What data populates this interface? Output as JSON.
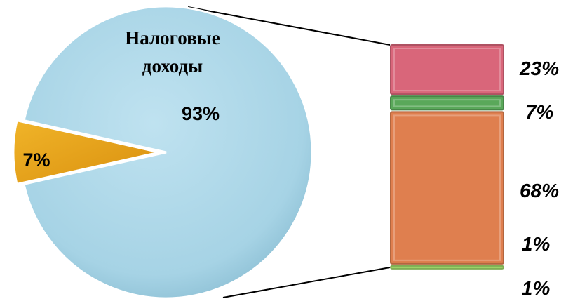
{
  "chart_data": [
    {
      "type": "pie",
      "slices": [
        {
          "label": "Налоговые доходы",
          "label_lines": [
            "Налоговые",
            "доходы"
          ],
          "value": 93,
          "value_label": "93%",
          "color": "#a8d4e6"
        },
        {
          "label": "",
          "value": 7,
          "value_label": "7%",
          "color": "#e6a11a"
        }
      ]
    },
    {
      "type": "bar",
      "stacked": true,
      "segments": [
        {
          "value": 23,
          "value_label": "23%",
          "color": "#d9667a"
        },
        {
          "value": 7,
          "value_label": "7%",
          "color": "#5aa85a"
        },
        {
          "value": 68,
          "value_label": "68%",
          "color": "#df7f4f"
        },
        {
          "value": 1,
          "value_label": "1%",
          "color": "#df7f4f"
        },
        {
          "value": 1,
          "value_label": "1%",
          "color": "#9fd86a"
        }
      ]
    }
  ]
}
